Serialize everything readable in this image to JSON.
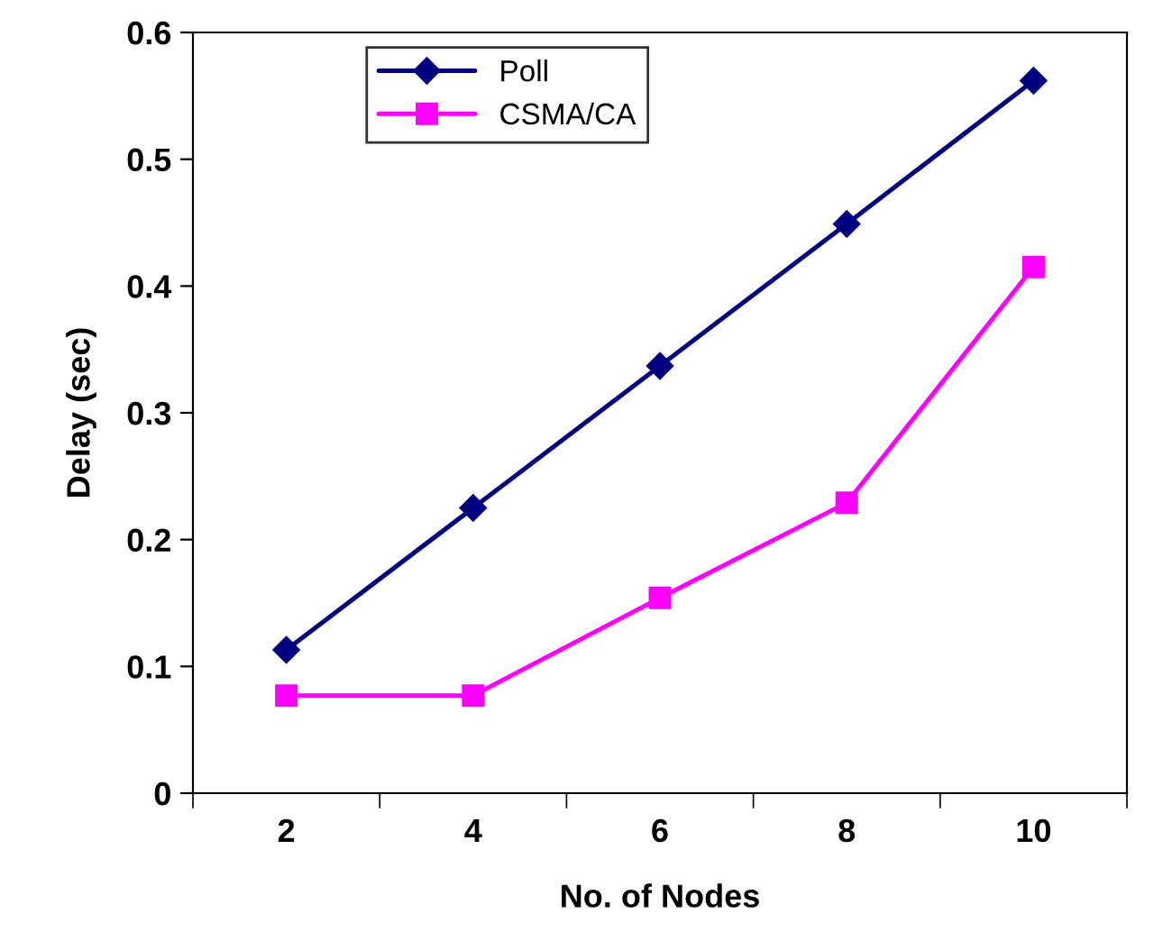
{
  "chart_data": {
    "type": "line",
    "xlabel": "No. of Nodes",
    "ylabel": "Delay (sec)",
    "categories": [
      "2",
      "4",
      "6",
      "8",
      "10"
    ],
    "series": [
      {
        "name": "Poll",
        "color": "#000080",
        "marker": "diamond",
        "values": [
          0.113,
          0.225,
          0.337,
          0.449,
          0.562
        ]
      },
      {
        "name": "CSMA/CA",
        "color": "#ff00ff",
        "marker": "square",
        "values": [
          0.077,
          0.077,
          0.154,
          0.229,
          0.415
        ]
      }
    ],
    "ylim": [
      0,
      0.6
    ],
    "yticks": [
      {
        "value": 0,
        "label": "0"
      },
      0.1,
      0.2,
      0.3,
      0.4,
      0.5,
      0.6
    ],
    "grid": false,
    "legend": "top left",
    "line_style": "solid"
  }
}
